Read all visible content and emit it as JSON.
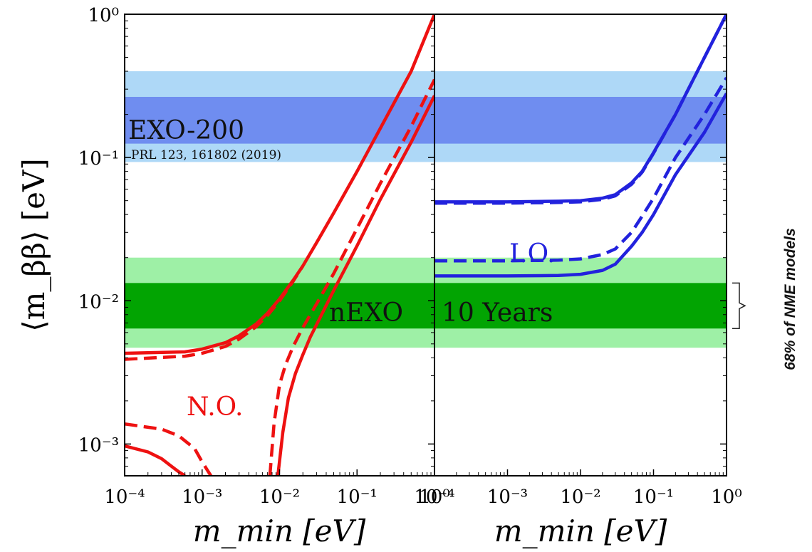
{
  "chart_data": {
    "type": "line",
    "scale": {
      "x": "log",
      "y": "log"
    },
    "xlabel": "m_min [eV]",
    "ylabel": "⟨m_ββ⟩ [eV]",
    "xlim": [
      0.0001,
      1
    ],
    "ylim": [
      0.0006,
      1
    ],
    "panels": [
      {
        "name": "left",
        "ticks": [
          "10⁻⁴",
          "10⁻³",
          "10⁻²",
          "10⁻¹",
          "10⁰"
        ]
      },
      {
        "name": "right",
        "ticks": [
          "10⁻⁴",
          "10⁻³",
          "10⁻²",
          "10⁻¹",
          "10⁰"
        ]
      }
    ],
    "yticks": [
      "10⁻³",
      "10⁻²",
      "10⁻¹",
      "10⁰"
    ],
    "bands": [
      {
        "experiment": "EXO-200",
        "reference": "PRL 123, 161802 (2019)",
        "outer": [
          0.093,
          0.4
        ],
        "inner": [
          0.125,
          0.265
        ],
        "outer_color": "#aed8f7",
        "inner_color": "#6f8df0"
      },
      {
        "experiment": "nEXO",
        "label": "10 Years",
        "outer": [
          0.0047,
          0.02
        ],
        "inner": [
          0.0064,
          0.0133
        ],
        "outer_color": "#9ef0a6",
        "inner_color": "#02a402"
      }
    ],
    "bracket_note": "68% of NME models",
    "orderings": [
      {
        "label": "N.O.",
        "panel": "left",
        "color": "#ee1111"
      },
      {
        "label": "I.O.",
        "panel": "right",
        "color": "#2222dd"
      }
    ],
    "series": [
      {
        "panel": "left",
        "style": "solid",
        "x": [
          0.0001,
          0.0006,
          0.001,
          0.002,
          0.003,
          0.005,
          0.007,
          0.01,
          0.015,
          0.02,
          0.03,
          0.05,
          0.1,
          0.2,
          0.5,
          1
        ],
        "y": [
          0.0043,
          0.0044,
          0.0046,
          0.0051,
          0.0057,
          0.0069,
          0.0082,
          0.0103,
          0.0139,
          0.0175,
          0.0254,
          0.041,
          0.08,
          0.16,
          0.4,
          1.0
        ]
      },
      {
        "panel": "left",
        "style": "dashed",
        "x": [
          0.0001,
          0.0006,
          0.001,
          0.002,
          0.003,
          0.005,
          0.007,
          0.01,
          0.015,
          0.02
        ],
        "y": [
          0.0039,
          0.0041,
          0.0043,
          0.0048,
          0.0054,
          0.0066,
          0.0079,
          0.01,
          0.0137,
          0.0175
        ]
      },
      {
        "panel": "left",
        "style": "solid",
        "x": [
          0.0001,
          0.0002,
          0.0003,
          0.0004,
          0.0005,
          0.0006
        ],
        "y": [
          0.00097,
          0.00088,
          0.00079,
          0.0007,
          0.00064,
          0.0006
        ]
      },
      {
        "panel": "left",
        "style": "dashed",
        "x": [
          0.0001,
          0.0003,
          0.0005,
          0.0008,
          0.001,
          0.0013
        ],
        "y": [
          0.00138,
          0.00127,
          0.00114,
          0.00093,
          0.00075,
          0.0006
        ]
      },
      {
        "panel": "left",
        "style": "solid",
        "x": [
          0.0095,
          0.011,
          0.013,
          0.016,
          0.02,
          0.025,
          0.03,
          0.05,
          0.1,
          0.2,
          0.5,
          1
        ],
        "y": [
          0.0006,
          0.0012,
          0.0021,
          0.0031,
          0.0042,
          0.0056,
          0.0068,
          0.0118,
          0.0242,
          0.051,
          0.128,
          0.27
        ]
      },
      {
        "panel": "left",
        "style": "dashed",
        "x": [
          0.0075,
          0.0085,
          0.01,
          0.012,
          0.015,
          0.02,
          0.03,
          0.05,
          0.1,
          0.2,
          0.5,
          1
        ],
        "y": [
          0.0006,
          0.0014,
          0.0026,
          0.0036,
          0.0048,
          0.0065,
          0.0095,
          0.0155,
          0.032,
          0.066,
          0.165,
          0.35
        ]
      },
      {
        "panel": "right",
        "style": "solid",
        "x": [
          0.0001,
          0.001,
          0.005,
          0.01,
          0.02,
          0.03,
          0.05,
          0.07,
          0.1,
          0.2,
          0.5,
          1
        ],
        "y": [
          0.049,
          0.049,
          0.0495,
          0.05,
          0.052,
          0.055,
          0.0665,
          0.08,
          0.108,
          0.2,
          0.5,
          1.0
        ]
      },
      {
        "panel": "right",
        "style": "dashed",
        "x": [
          0.0001,
          0.001,
          0.005,
          0.01,
          0.02,
          0.03,
          0.05,
          0.07,
          0.1,
          0.2,
          0.5,
          1
        ],
        "y": [
          0.048,
          0.048,
          0.0485,
          0.049,
          0.051,
          0.054,
          0.065,
          0.079,
          0.107,
          0.2,
          0.5,
          1.0
        ]
      },
      {
        "panel": "right",
        "style": "dashed",
        "x": [
          0.0001,
          0.001,
          0.005,
          0.01,
          0.02,
          0.03,
          0.05,
          0.07,
          0.1,
          0.2,
          0.5,
          1
        ],
        "y": [
          0.019,
          0.019,
          0.0192,
          0.0196,
          0.021,
          0.023,
          0.03,
          0.039,
          0.052,
          0.1,
          0.2,
          0.36
        ]
      },
      {
        "panel": "right",
        "style": "solid",
        "x": [
          0.0001,
          0.001,
          0.005,
          0.01,
          0.02,
          0.03,
          0.05,
          0.07,
          0.1,
          0.2,
          0.5,
          1
        ],
        "y": [
          0.0149,
          0.0149,
          0.015,
          0.0153,
          0.0163,
          0.018,
          0.024,
          0.03,
          0.04,
          0.076,
          0.15,
          0.28
        ]
      }
    ]
  }
}
